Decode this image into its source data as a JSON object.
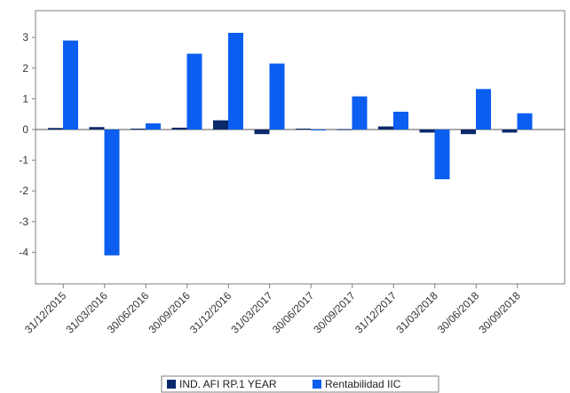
{
  "chart_data": {
    "type": "bar",
    "categories": [
      "31/12/2015",
      "31/03/2016",
      "30/06/2016",
      "30/09/2016",
      "31/12/2016",
      "31/03/2017",
      "30/06/2017",
      "30/09/2017",
      "31/12/2017",
      "31/03/2018",
      "30/06/2018",
      "30/09/2018"
    ],
    "series": [
      {
        "name": "IND. AFI RP.1 YEAR",
        "color": "#0a2a6b",
        "values": [
          0.05,
          0.08,
          0.03,
          0.06,
          0.3,
          -0.15,
          0.03,
          0.01,
          0.1,
          -0.1,
          -0.15,
          -0.1
        ]
      },
      {
        "name": "Rentabilidad IIC",
        "color": "#0b5ef0",
        "values": [
          2.9,
          -4.1,
          0.2,
          2.47,
          3.15,
          2.15,
          0.0,
          1.08,
          0.58,
          -1.62,
          1.32,
          0.53
        ]
      }
    ],
    "yticks": [
      3,
      2,
      1,
      0,
      -1,
      -2,
      -3,
      -4
    ],
    "ylim": [
      -5.0,
      3.8
    ],
    "title": "",
    "xlabel": "",
    "ylabel": "",
    "grid": false,
    "legend": "bottom-center"
  }
}
